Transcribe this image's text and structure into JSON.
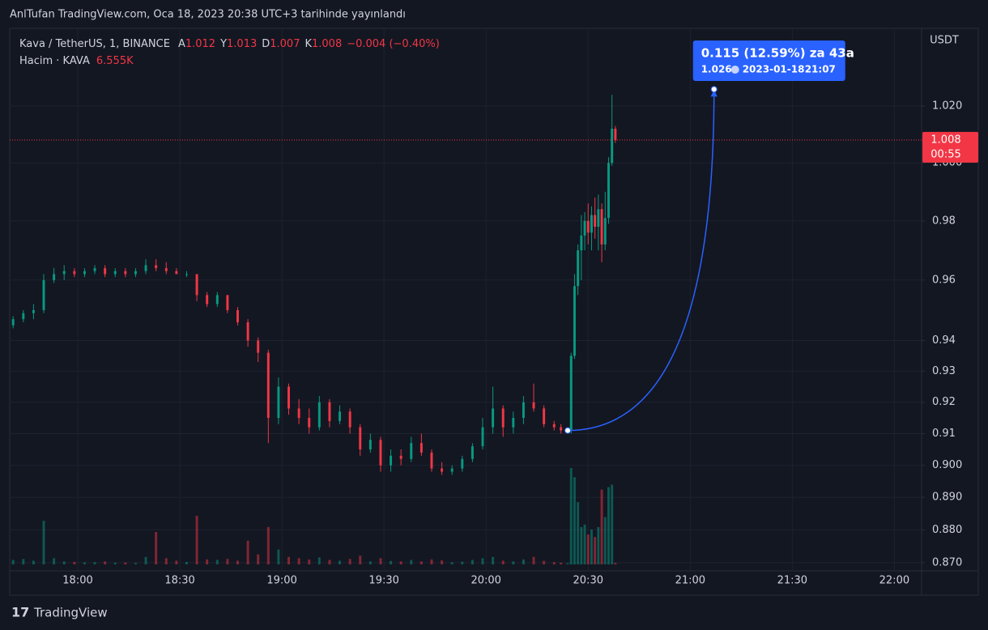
{
  "header": {
    "title": "AnlTufan TradingView.com, Oca 18, 2023 20:38 UTC+3 tarihinde yayınlandı"
  },
  "chart_data": {
    "type": "candlestick",
    "symbol": "Kava / TetherUS, 1, BINANCE",
    "ohlc_letters": [
      "A",
      "Y",
      "D",
      "K"
    ],
    "change": "−0.004 (−0.40%)",
    "volume_title": "Hacim · KAVA",
    "currency": "USDT",
    "log_scale": true,
    "grid": true,
    "up_color": "#089981",
    "down_color": "#f23645",
    "ylim": [
      0.8675,
      1.048
    ],
    "yticks": [
      {
        "value": 0.87,
        "label": "0.870"
      },
      {
        "value": 0.88,
        "label": "0.880"
      },
      {
        "value": 0.89,
        "label": "0.890"
      },
      {
        "value": 0.9,
        "label": "0.900"
      },
      0.91,
      0.92,
      0.93,
      0.94,
      0.96,
      0.98,
      {
        "value": 1.0,
        "label": "1.000"
      },
      {
        "value": 1.02,
        "label": "1.020"
      }
    ],
    "xlim": [
      "17:40",
      "22:08"
    ],
    "xticks": [
      "18:00",
      "18:30",
      "19:00",
      "19:30",
      "20:00",
      "20:30",
      "21:00",
      "21:30",
      "22:00"
    ],
    "vlim": [
      0,
      650000
    ],
    "candles": [
      {
        "t": "17:41",
        "o": 0.945,
        "h": 0.948,
        "l": 0.944,
        "c": 0.947,
        "v": 18000
      },
      {
        "t": "17:44",
        "o": 0.947,
        "h": 0.95,
        "l": 0.946,
        "c": 0.949,
        "v": 22000
      },
      {
        "t": "17:47",
        "o": 0.949,
        "h": 0.952,
        "l": 0.947,
        "c": 0.95,
        "v": 15000
      },
      {
        "t": "17:50",
        "o": 0.95,
        "h": 0.962,
        "l": 0.949,
        "c": 0.96,
        "v": 175000
      },
      {
        "t": "17:53",
        "o": 0.96,
        "h": 0.964,
        "l": 0.959,
        "c": 0.962,
        "v": 25000
      },
      {
        "t": "17:56",
        "o": 0.962,
        "h": 0.965,
        "l": 0.96,
        "c": 0.963,
        "v": 12000
      },
      {
        "t": "17:59",
        "o": 0.963,
        "h": 0.964,
        "l": 0.961,
        "c": 0.962,
        "v": 10000
      },
      {
        "t": "18:02",
        "o": 0.962,
        "h": 0.964,
        "l": 0.961,
        "c": 0.963,
        "v": 8000
      },
      {
        "t": "18:05",
        "o": 0.963,
        "h": 0.965,
        "l": 0.962,
        "c": 0.964,
        "v": 9000
      },
      {
        "t": "18:08",
        "o": 0.964,
        "h": 0.965,
        "l": 0.961,
        "c": 0.962,
        "v": 12000
      },
      {
        "t": "18:11",
        "o": 0.962,
        "h": 0.964,
        "l": 0.961,
        "c": 0.963,
        "v": 7000
      },
      {
        "t": "18:14",
        "o": 0.963,
        "h": 0.964,
        "l": 0.961,
        "c": 0.962,
        "v": 8000
      },
      {
        "t": "18:17",
        "o": 0.962,
        "h": 0.964,
        "l": 0.961,
        "c": 0.963,
        "v": 6000
      },
      {
        "t": "18:20",
        "o": 0.963,
        "h": 0.967,
        "l": 0.962,
        "c": 0.965,
        "v": 30000
      },
      {
        "t": "18:23",
        "o": 0.965,
        "h": 0.967,
        "l": 0.963,
        "c": 0.964,
        "v": 130000
      },
      {
        "t": "18:26",
        "o": 0.964,
        "h": 0.966,
        "l": 0.962,
        "c": 0.963,
        "v": 25000
      },
      {
        "t": "18:29",
        "o": 0.963,
        "h": 0.964,
        "l": 0.962,
        "c": 0.962,
        "v": 15000
      },
      {
        "t": "18:32",
        "o": 0.962,
        "h": 0.963,
        "l": 0.961,
        "c": 0.962,
        "v": 10000
      },
      {
        "t": "18:35",
        "o": 0.962,
        "h": 0.962,
        "l": 0.953,
        "c": 0.955,
        "v": 195000
      },
      {
        "t": "18:38",
        "o": 0.955,
        "h": 0.956,
        "l": 0.951,
        "c": 0.952,
        "v": 20000
      },
      {
        "t": "18:41",
        "o": 0.952,
        "h": 0.956,
        "l": 0.951,
        "c": 0.955,
        "v": 18000
      },
      {
        "t": "18:44",
        "o": 0.955,
        "h": 0.955,
        "l": 0.949,
        "c": 0.95,
        "v": 22000
      },
      {
        "t": "18:47",
        "o": 0.95,
        "h": 0.951,
        "l": 0.945,
        "c": 0.946,
        "v": 15000
      },
      {
        "t": "18:50",
        "o": 0.946,
        "h": 0.947,
        "l": 0.938,
        "c": 0.94,
        "v": 95000
      },
      {
        "t": "18:53",
        "o": 0.94,
        "h": 0.941,
        "l": 0.933,
        "c": 0.936,
        "v": 40000
      },
      {
        "t": "18:56",
        "o": 0.936,
        "h": 0.937,
        "l": 0.907,
        "c": 0.915,
        "v": 150000
      },
      {
        "t": "18:59",
        "o": 0.915,
        "h": 0.928,
        "l": 0.913,
        "c": 0.925,
        "v": 60000
      },
      {
        "t": "19:02",
        "o": 0.925,
        "h": 0.926,
        "l": 0.916,
        "c": 0.918,
        "v": 30000
      },
      {
        "t": "19:05",
        "o": 0.918,
        "h": 0.921,
        "l": 0.913,
        "c": 0.915,
        "v": 25000
      },
      {
        "t": "19:08",
        "o": 0.915,
        "h": 0.918,
        "l": 0.91,
        "c": 0.912,
        "v": 20000
      },
      {
        "t": "19:11",
        "o": 0.912,
        "h": 0.922,
        "l": 0.911,
        "c": 0.92,
        "v": 28000
      },
      {
        "t": "19:14",
        "o": 0.92,
        "h": 0.921,
        "l": 0.912,
        "c": 0.914,
        "v": 18000
      },
      {
        "t": "19:17",
        "o": 0.914,
        "h": 0.919,
        "l": 0.913,
        "c": 0.917,
        "v": 15000
      },
      {
        "t": "19:20",
        "o": 0.917,
        "h": 0.918,
        "l": 0.91,
        "c": 0.912,
        "v": 22000
      },
      {
        "t": "19:23",
        "o": 0.912,
        "h": 0.913,
        "l": 0.903,
        "c": 0.905,
        "v": 35000
      },
      {
        "t": "19:26",
        "o": 0.905,
        "h": 0.91,
        "l": 0.904,
        "c": 0.908,
        "v": 12000
      },
      {
        "t": "19:29",
        "o": 0.908,
        "h": 0.909,
        "l": 0.898,
        "c": 0.9,
        "v": 25000
      },
      {
        "t": "19:32",
        "o": 0.9,
        "h": 0.905,
        "l": 0.898,
        "c": 0.903,
        "v": 14000
      },
      {
        "t": "19:35",
        "o": 0.903,
        "h": 0.905,
        "l": 0.9,
        "c": 0.902,
        "v": 12000
      },
      {
        "t": "19:38",
        "o": 0.902,
        "h": 0.909,
        "l": 0.901,
        "c": 0.907,
        "v": 18000
      },
      {
        "t": "19:41",
        "o": 0.907,
        "h": 0.91,
        "l": 0.903,
        "c": 0.904,
        "v": 12000
      },
      {
        "t": "19:44",
        "o": 0.904,
        "h": 0.905,
        "l": 0.898,
        "c": 0.899,
        "v": 20000
      },
      {
        "t": "19:47",
        "o": 0.899,
        "h": 0.901,
        "l": 0.897,
        "c": 0.898,
        "v": 16000
      },
      {
        "t": "19:50",
        "o": 0.898,
        "h": 0.9,
        "l": 0.897,
        "c": 0.899,
        "v": 9000
      },
      {
        "t": "19:53",
        "o": 0.899,
        "h": 0.903,
        "l": 0.898,
        "c": 0.902,
        "v": 11000
      },
      {
        "t": "19:56",
        "o": 0.902,
        "h": 0.907,
        "l": 0.901,
        "c": 0.906,
        "v": 18000
      },
      {
        "t": "19:59",
        "o": 0.906,
        "h": 0.915,
        "l": 0.905,
        "c": 0.912,
        "v": 25000
      },
      {
        "t": "20:02",
        "o": 0.912,
        "h": 0.925,
        "l": 0.91,
        "c": 0.918,
        "v": 30000
      },
      {
        "t": "20:05",
        "o": 0.918,
        "h": 0.919,
        "l": 0.909,
        "c": 0.912,
        "v": 15000
      },
      {
        "t": "20:08",
        "o": 0.912,
        "h": 0.917,
        "l": 0.91,
        "c": 0.915,
        "v": 12000
      },
      {
        "t": "20:11",
        "o": 0.915,
        "h": 0.922,
        "l": 0.913,
        "c": 0.92,
        "v": 20000
      },
      {
        "t": "20:14",
        "o": 0.92,
        "h": 0.926,
        "l": 0.917,
        "c": 0.918,
        "v": 30000
      },
      {
        "t": "20:17",
        "o": 0.918,
        "h": 0.919,
        "l": 0.912,
        "c": 0.913,
        "v": 14000
      },
      {
        "t": "20:20",
        "o": 0.913,
        "h": 0.914,
        "l": 0.911,
        "c": 0.912,
        "v": 9000
      },
      {
        "t": "20:22",
        "o": 0.912,
        "h": 0.913,
        "l": 0.91,
        "c": 0.911,
        "v": 7000
      },
      {
        "t": "20:24",
        "o": 0.911,
        "h": 0.912,
        "l": 0.91,
        "c": 0.911,
        "v": 5000
      },
      {
        "t": "20:25",
        "o": 0.911,
        "h": 0.936,
        "l": 0.91,
        "c": 0.935,
        "v": 387000
      },
      {
        "t": "20:26",
        "o": 0.935,
        "h": 0.962,
        "l": 0.934,
        "c": 0.958,
        "v": 350000
      },
      {
        "t": "20:27",
        "o": 0.958,
        "h": 0.972,
        "l": 0.955,
        "c": 0.97,
        "v": 250000
      },
      {
        "t": "20:28",
        "o": 0.97,
        "h": 0.982,
        "l": 0.96,
        "c": 0.975,
        "v": 150000
      },
      {
        "t": "20:29",
        "o": 0.975,
        "h": 0.983,
        "l": 0.97,
        "c": 0.98,
        "v": 160000
      },
      {
        "t": "20:30",
        "o": 0.98,
        "h": 0.986,
        "l": 0.972,
        "c": 0.976,
        "v": 120000
      },
      {
        "t": "20:31",
        "o": 0.976,
        "h": 0.985,
        "l": 0.97,
        "c": 0.982,
        "v": 140000
      },
      {
        "t": "20:32",
        "o": 0.982,
        "h": 0.988,
        "l": 0.974,
        "c": 0.978,
        "v": 110000
      },
      {
        "t": "20:33",
        "o": 0.978,
        "h": 0.989,
        "l": 0.97,
        "c": 0.984,
        "v": 150000
      },
      {
        "t": "20:34",
        "o": 0.984,
        "h": 0.986,
        "l": 0.966,
        "c": 0.972,
        "v": 300000
      },
      {
        "t": "20:35",
        "o": 0.972,
        "h": 0.99,
        "l": 0.97,
        "c": 0.981,
        "v": 190000
      },
      {
        "t": "20:36",
        "o": 0.981,
        "h": 1.002,
        "l": 0.979,
        "c": 1.0,
        "v": 310000
      },
      {
        "t": "20:37",
        "o": 1.0,
        "h": 1.024,
        "l": 0.999,
        "c": 1.012,
        "v": 320000
      },
      {
        "t": "20:38",
        "o": 1.012,
        "h": 1.013,
        "l": 1.007,
        "c": 1.008,
        "v": 6555,
        "v_label": "6.555K"
      }
    ],
    "last_price": 1.008,
    "countdown": "00:55",
    "measure": {
      "label": "0.115 (12.59%) za 43a",
      "start": {
        "x": "20:24",
        "y": 0.911
      },
      "end_price": 1.026,
      "end_date": "2023-01-18",
      "end_time": "21:07",
      "color": "#2962ff"
    }
  },
  "footer": {
    "brand": "TradingView"
  }
}
